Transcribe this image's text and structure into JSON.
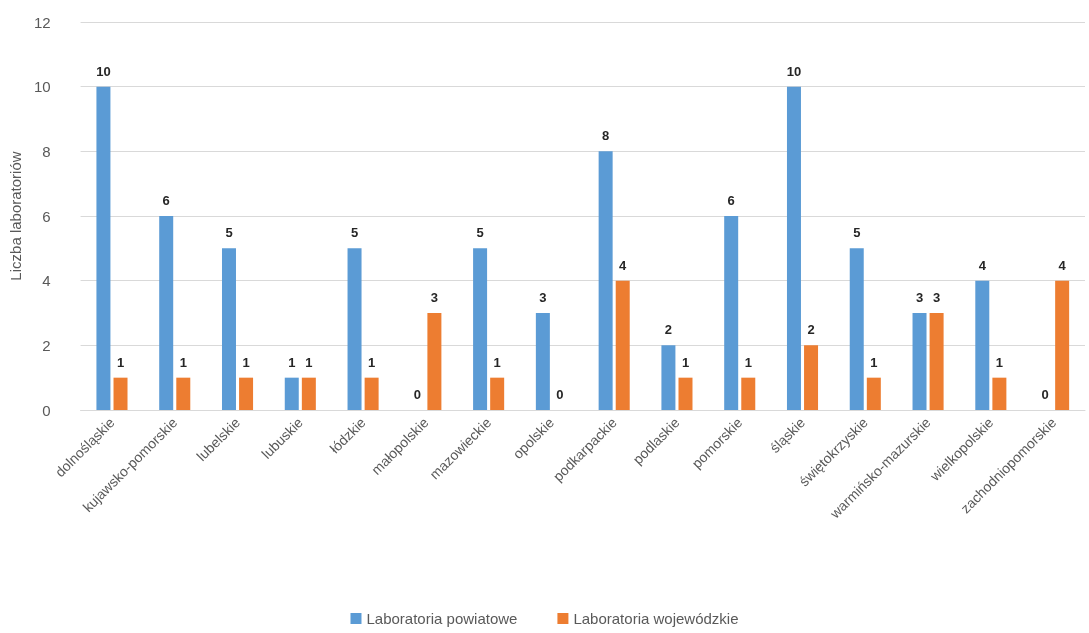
{
  "chart_data": {
    "type": "bar",
    "ylabel": "Liczba laboratoriów",
    "categories": [
      "dolnośląskie",
      "kujawsko-pomorskie",
      "lubelskie",
      "lubuskie",
      "łódzkie",
      "małopolskie",
      "mazowieckie",
      "opolskie",
      "podkarpackie",
      "podlaskie",
      "pomorskie",
      "śląskie",
      "świętokrzyskie",
      "warmińsko-mazurskie",
      "wielkopolskie",
      "zachodniopomorskie"
    ],
    "series": [
      {
        "name": "Laboratoria powiatowe",
        "color": "#5b9bd5",
        "values": [
          10,
          6,
          5,
          1,
          5,
          0,
          5,
          3,
          8,
          2,
          6,
          10,
          5,
          3,
          4,
          0
        ]
      },
      {
        "name": "Laboratoria wojewódzkie",
        "color": "#ed7d31",
        "values": [
          1,
          1,
          1,
          1,
          1,
          3,
          1,
          0,
          4,
          1,
          1,
          2,
          1,
          3,
          1,
          4
        ]
      }
    ],
    "ylim": [
      0,
      12
    ],
    "yticks": [
      0,
      2,
      4,
      6,
      8,
      10,
      12
    ],
    "grid": "y",
    "legend": "bottom",
    "data_labels": true
  }
}
